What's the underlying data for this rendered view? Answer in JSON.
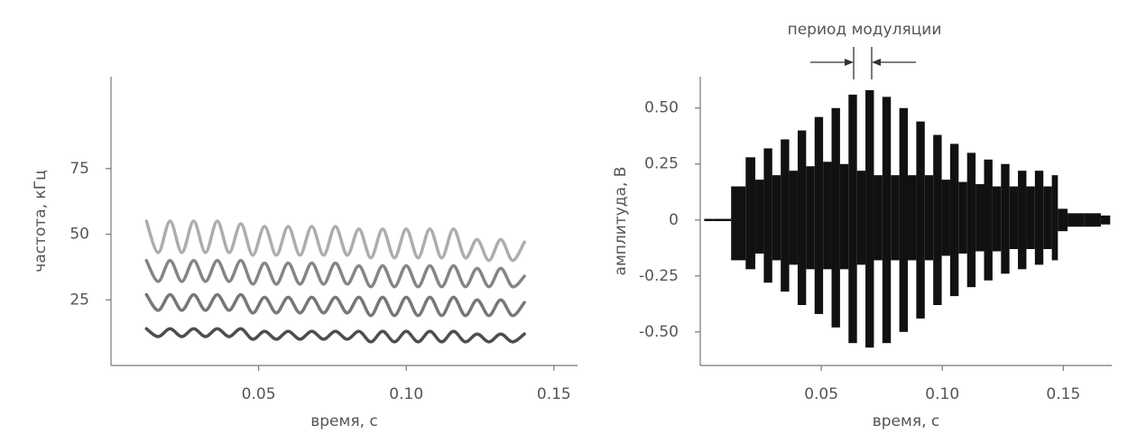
{
  "chart_data": [
    {
      "type": "line",
      "xlabel": "время, с",
      "ylabel": "частота, кГц",
      "xlim": [
        0,
        0.158
      ],
      "ylim": [
        0,
        110
      ],
      "xticks": [
        0.05,
        {
          "value": 0.1,
          "label": "0.10"
        },
        0.15
      ],
      "yticks": [
        25,
        50,
        75
      ],
      "x": [
        0.012,
        0.016,
        0.02,
        0.024,
        0.028,
        0.032,
        0.036,
        0.04,
        0.044,
        0.048,
        0.052,
        0.056,
        0.06,
        0.064,
        0.068,
        0.072,
        0.076,
        0.08,
        0.084,
        0.088,
        0.092,
        0.096,
        0.1,
        0.104,
        0.108,
        0.112,
        0.116,
        0.12,
        0.124,
        0.128,
        0.132,
        0.136,
        0.14
      ],
      "series": [
        {
          "color": "#222",
          "values": [
            14,
            11,
            14,
            11,
            14,
            11,
            14,
            11,
            14,
            10,
            13,
            10,
            13,
            10,
            13,
            10,
            13,
            10,
            13,
            9,
            13,
            9,
            13,
            9,
            13,
            9,
            13,
            9,
            12,
            9,
            12,
            9,
            12
          ]
        },
        {
          "color": "#555",
          "values": [
            27,
            21,
            27,
            21,
            27,
            21,
            27,
            21,
            27,
            20,
            26,
            20,
            26,
            20,
            26,
            20,
            26,
            20,
            26,
            19,
            26,
            19,
            26,
            19,
            26,
            19,
            26,
            19,
            25,
            19,
            25,
            19,
            24
          ]
        },
        {
          "color": "#666",
          "values": [
            40,
            32,
            40,
            32,
            40,
            32,
            40,
            32,
            40,
            31,
            39,
            31,
            39,
            31,
            39,
            31,
            39,
            31,
            38,
            30,
            38,
            30,
            38,
            30,
            38,
            30,
            38,
            30,
            37,
            30,
            37,
            30,
            34
          ]
        },
        {
          "color": "#999",
          "values": [
            55,
            43,
            55,
            43,
            55,
            43,
            55,
            43,
            54,
            42,
            53,
            42,
            53,
            42,
            53,
            42,
            53,
            42,
            52,
            41,
            52,
            41,
            52,
            41,
            52,
            41,
            52,
            41,
            48,
            40,
            48,
            40,
            47
          ]
        }
      ]
    },
    {
      "type": "range",
      "annotation": "период модуляции",
      "xlabel": "время, с",
      "ylabel": "амплитуда, В",
      "xlim": [
        0,
        0.17
      ],
      "ylim": [
        -0.65,
        0.64
      ],
      "xticks": [
        0.05,
        {
          "value": 0.1,
          "label": "0.10"
        },
        0.15
      ],
      "yticks": [
        {
          "value": 0.5,
          "label": "0.50"
        },
        0.25,
        0,
        -0.25,
        {
          "value": -0.5,
          "label": "-0.50"
        }
      ],
      "color": "#111",
      "x": [
        0.002,
        0.009,
        0.0165,
        0.021,
        0.0245,
        0.028,
        0.0315,
        0.035,
        0.0385,
        0.042,
        0.0455,
        0.049,
        0.0525,
        0.056,
        0.0595,
        0.063,
        0.0665,
        0.07,
        0.0735,
        0.077,
        0.0805,
        0.084,
        0.0875,
        0.091,
        0.0945,
        0.098,
        0.1015,
        0.105,
        0.1085,
        0.112,
        0.1155,
        0.119,
        0.1225,
        0.126,
        0.1295,
        0.133,
        0.1365,
        0.14,
        0.1435,
        0.147,
        0.1485,
        0.155,
        0.162,
        0.169
      ],
      "values": [
        0.005,
        0.005,
        0.15,
        0.28,
        0.18,
        0.32,
        0.2,
        0.36,
        0.22,
        0.4,
        0.24,
        0.46,
        0.26,
        0.5,
        0.25,
        0.56,
        0.22,
        0.58,
        0.2,
        0.55,
        0.2,
        0.5,
        0.2,
        0.44,
        0.2,
        0.38,
        0.18,
        0.34,
        0.17,
        0.3,
        0.16,
        0.27,
        0.15,
        0.25,
        0.15,
        0.22,
        0.15,
        0.22,
        0.15,
        0.2,
        0.05,
        0.03,
        0.03,
        0.02
      ],
      "lower": [
        -0.005,
        -0.005,
        -0.18,
        -0.22,
        -0.15,
        -0.28,
        -0.18,
        -0.32,
        -0.2,
        -0.38,
        -0.22,
        -0.42,
        -0.22,
        -0.48,
        -0.22,
        -0.55,
        -0.2,
        -0.57,
        -0.18,
        -0.55,
        -0.18,
        -0.5,
        -0.18,
        -0.44,
        -0.18,
        -0.38,
        -0.16,
        -0.34,
        -0.15,
        -0.3,
        -0.14,
        -0.27,
        -0.14,
        -0.24,
        -0.13,
        -0.22,
        -0.13,
        -0.2,
        -0.13,
        -0.18,
        -0.05,
        -0.03,
        -0.03,
        -0.02
      ]
    }
  ]
}
